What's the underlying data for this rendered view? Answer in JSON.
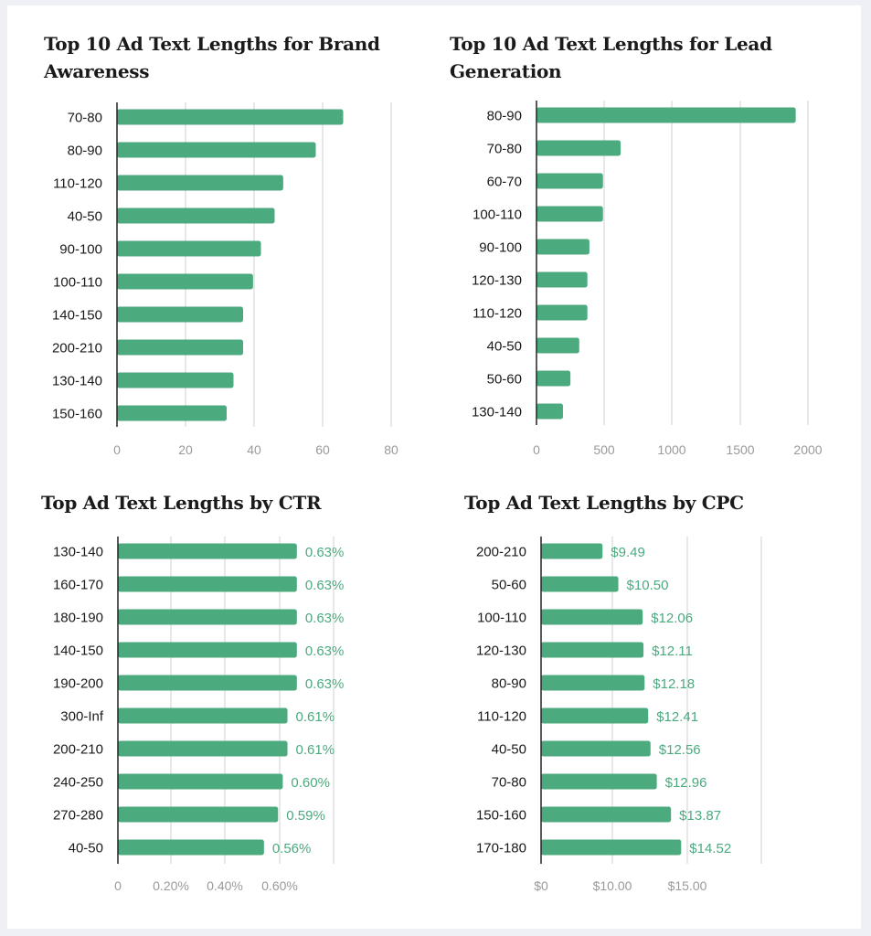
{
  "colors": {
    "bar": "#4caa7f",
    "value_label": "#4caa7f",
    "grid": "#d0d0d0",
    "axis": "#222222",
    "tick": "#9a9a9a",
    "text": "#1a1a1a"
  },
  "chart_data": [
    {
      "type": "bar",
      "orientation": "horizontal",
      "title": "Top 10 Ad Text Lengths for Brand Awareness",
      "categories": [
        "70-80",
        "80-90",
        "110-120",
        "40-50",
        "90-100",
        "100-110",
        "140-150",
        "200-210",
        "130-140",
        "150-160"
      ],
      "values": [
        66,
        58,
        48.5,
        46,
        42,
        39.7,
        36.8,
        36.8,
        34,
        32
      ],
      "xlim": [
        0,
        80
      ],
      "xticks": [
        0,
        20,
        40,
        60,
        80
      ],
      "xtick_labels": [
        "0",
        "20",
        "40",
        "60",
        "80"
      ],
      "grid": true
    },
    {
      "type": "bar",
      "orientation": "horizontal",
      "title": "Top 10 Ad Text Lengths for Lead Generation",
      "categories": [
        "80-90",
        "70-80",
        "60-70",
        "100-110",
        "90-100",
        "120-130",
        "110-120",
        "40-50",
        "50-60",
        "130-140"
      ],
      "values": [
        1910,
        620,
        490,
        490,
        390,
        375,
        375,
        315,
        250,
        195
      ],
      "xlim": [
        0,
        2000
      ],
      "xticks": [
        0,
        500,
        1000,
        1500,
        2000
      ],
      "xtick_labels": [
        "0",
        "500",
        "1000",
        "1500",
        "2000"
      ],
      "grid": true
    },
    {
      "type": "bar",
      "orientation": "horizontal",
      "title": "Top Ad Text Lengths by CTR",
      "categories": [
        "130-140",
        "160-170",
        "180-190",
        "140-150",
        "190-200",
        "300-Inf",
        "200-210",
        "240-250",
        "270-280",
        "40-50"
      ],
      "values": [
        0.63,
        0.63,
        0.63,
        0.63,
        0.63,
        0.61,
        0.61,
        0.6,
        0.59,
        0.56
      ],
      "data_labels": [
        "0.63%",
        "0.63%",
        "0.63%",
        "0.63%",
        "0.63%",
        "0.61%",
        "0.61%",
        "0.60%",
        "0.59%",
        "0.56%"
      ],
      "xtick_labels": [
        "0",
        "0.20%",
        "0.40%",
        "0.60%",
        ""
      ],
      "grid": true
    },
    {
      "type": "bar",
      "orientation": "horizontal",
      "title": "Top Ad Text Lengths by CPC",
      "categories": [
        "200-210",
        "50-60",
        "100-110",
        "120-130",
        "80-90",
        "110-120",
        "40-50",
        "70-80",
        "150-160",
        "170-180"
      ],
      "values": [
        9.49,
        10.5,
        12.06,
        12.11,
        12.18,
        12.41,
        12.56,
        12.96,
        13.87,
        14.52
      ],
      "data_labels": [
        "$9.49",
        "$10.50",
        "$12.06",
        "$12.11",
        "$12.18",
        "$12.41",
        "$12.56",
        "$12.96",
        "$13.87",
        "$14.52"
      ],
      "xtick_labels": [
        "$0",
        "$10.00",
        "$15.00",
        ""
      ],
      "grid": true
    }
  ]
}
